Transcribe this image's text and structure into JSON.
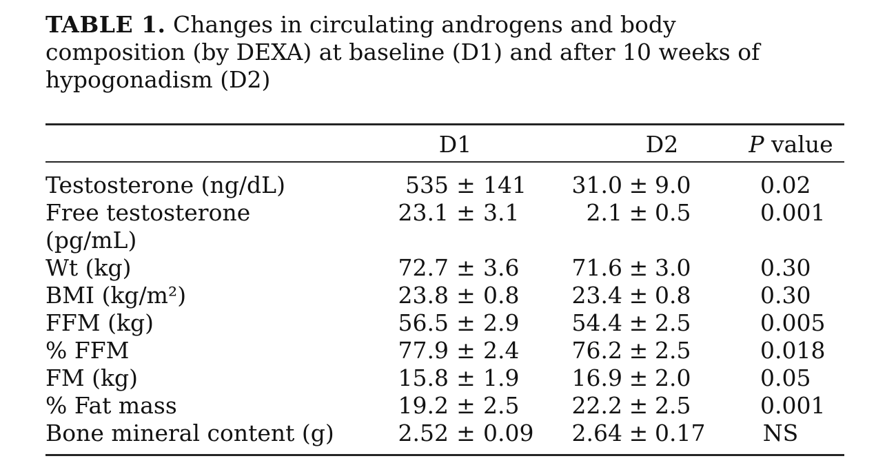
{
  "title": {
    "tag": "TABLE 1.",
    "line1_rest": "Changes in circulating androgens and body",
    "line2": "composition (by DEXA) at baseline (D1) and after 10 weeks of",
    "line3": "hypogonadism (D2)"
  },
  "table": {
    "plus_minus": "±",
    "header": {
      "d1": "D1",
      "d2": "D2",
      "p_italic": "P",
      "p_rest": " value"
    },
    "rows": [
      {
        "label": "Testosterone (ng/dL)",
        "d1_mean": "535",
        "d1_sd": "141",
        "d2_mean": "31.0",
        "d2_sd": "9.0",
        "p": "0.02"
      },
      {
        "label": "Free testosterone (pg/mL)",
        "d1_mean": "23.1",
        "d1_sd": "3.1",
        "d2_mean": "2.1",
        "d2_sd": "0.5",
        "p": "0.001"
      },
      {
        "label": "Wt (kg)",
        "d1_mean": "72.7",
        "d1_sd": "3.6",
        "d2_mean": "71.6",
        "d2_sd": "3.0",
        "p": "0.30"
      },
      {
        "label": "BMI (kg/m²)",
        "d1_mean": "23.8",
        "d1_sd": "0.8",
        "d2_mean": "23.4",
        "d2_sd": "0.8",
        "p": "0.30"
      },
      {
        "label": "FFM (kg)",
        "d1_mean": "56.5",
        "d1_sd": "2.9",
        "d2_mean": "54.4",
        "d2_sd": "2.5",
        "p": "0.005"
      },
      {
        "label": "% FFM",
        "d1_mean": "77.9",
        "d1_sd": "2.4",
        "d2_mean": "76.2",
        "d2_sd": "2.5",
        "p": "0.018"
      },
      {
        "label": "FM (kg)",
        "d1_mean": "15.8",
        "d1_sd": "1.9",
        "d2_mean": "16.9",
        "d2_sd": "2.0",
        "p": "0.05"
      },
      {
        "label": "% Fat mass",
        "d1_mean": "19.2",
        "d1_sd": "2.5",
        "d2_mean": "22.2",
        "d2_sd": "2.5",
        "p": "0.001"
      },
      {
        "label": "Bone mineral content (g)",
        "d1_mean": "2.52",
        "d1_sd": "0.09",
        "d2_mean": "2.64",
        "d2_sd": "0.17",
        "p": "NS"
      }
    ]
  },
  "colors": {
    "text": "#121212",
    "rule": "#242424",
    "background": "#ffffff"
  }
}
